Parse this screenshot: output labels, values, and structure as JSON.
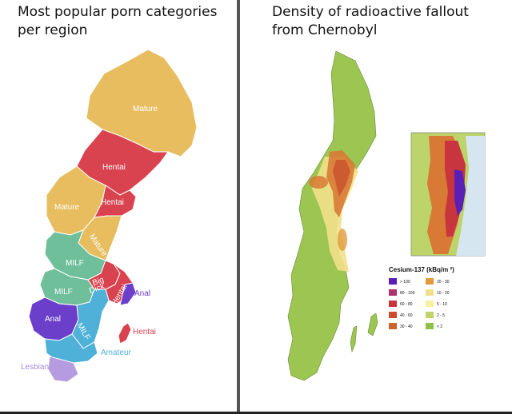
{
  "left_panel": {
    "title_line1": "Most popular porn categories",
    "title_line2": "per region",
    "regions": [
      {
        "label": "Mature",
        "color": "#e8bd5f"
      },
      {
        "label": "Hentai",
        "color": "#d9434f"
      },
      {
        "label": "Hentai",
        "color": "#d9434f"
      },
      {
        "label": "Mature",
        "color": "#e8bd5f"
      },
      {
        "label": "Mature",
        "color": "#e8bd5f"
      },
      {
        "label": "MILF",
        "color": "#6fbf9a"
      },
      {
        "label": "MILF",
        "color": "#6fbf9a"
      },
      {
        "label": "Big",
        "color": "#d9434f"
      },
      {
        "label": "Dick",
        "color": "#d9434f"
      },
      {
        "label": "Hentai",
        "color": "#d9434f"
      },
      {
        "label": "Anal",
        "color": "#6b3fc9"
      },
      {
        "label": "Anal",
        "color": "#6b3fc9"
      },
      {
        "label": "MILF",
        "color": "#4fb0d8"
      },
      {
        "label": "Hentai",
        "color": "#d9434f"
      },
      {
        "label": "Amateur",
        "color": "#4fb0d8"
      },
      {
        "label": "Lesbian",
        "color": "#b59be0"
      }
    ]
  },
  "right_panel": {
    "title_line1": "Density of radioactive fallout",
    "title_line2": "from Chernobyl",
    "legend": {
      "title": "Cesium-137  (kBq/m ²)",
      "items": [
        {
          "label": "> 100",
          "color": "#5a1fb4"
        },
        {
          "label": "80 - 100",
          "color": "#b0306a"
        },
        {
          "label": "60 - 80",
          "color": "#c9353f"
        },
        {
          "label": "40 - 60",
          "color": "#cc4a2e"
        },
        {
          "label": "30 - 40",
          "color": "#c9642a"
        },
        {
          "label": "20 - 30",
          "color": "#e09b3c"
        },
        {
          "label": "10 - 20",
          "color": "#f3e08a"
        },
        {
          "label": "5 - 10",
          "color": "#f6f1a0"
        },
        {
          "label": "2 - 5",
          "color": "#bcd46a"
        },
        {
          "label": "< 2",
          "color": "#8ec24a"
        }
      ]
    }
  }
}
